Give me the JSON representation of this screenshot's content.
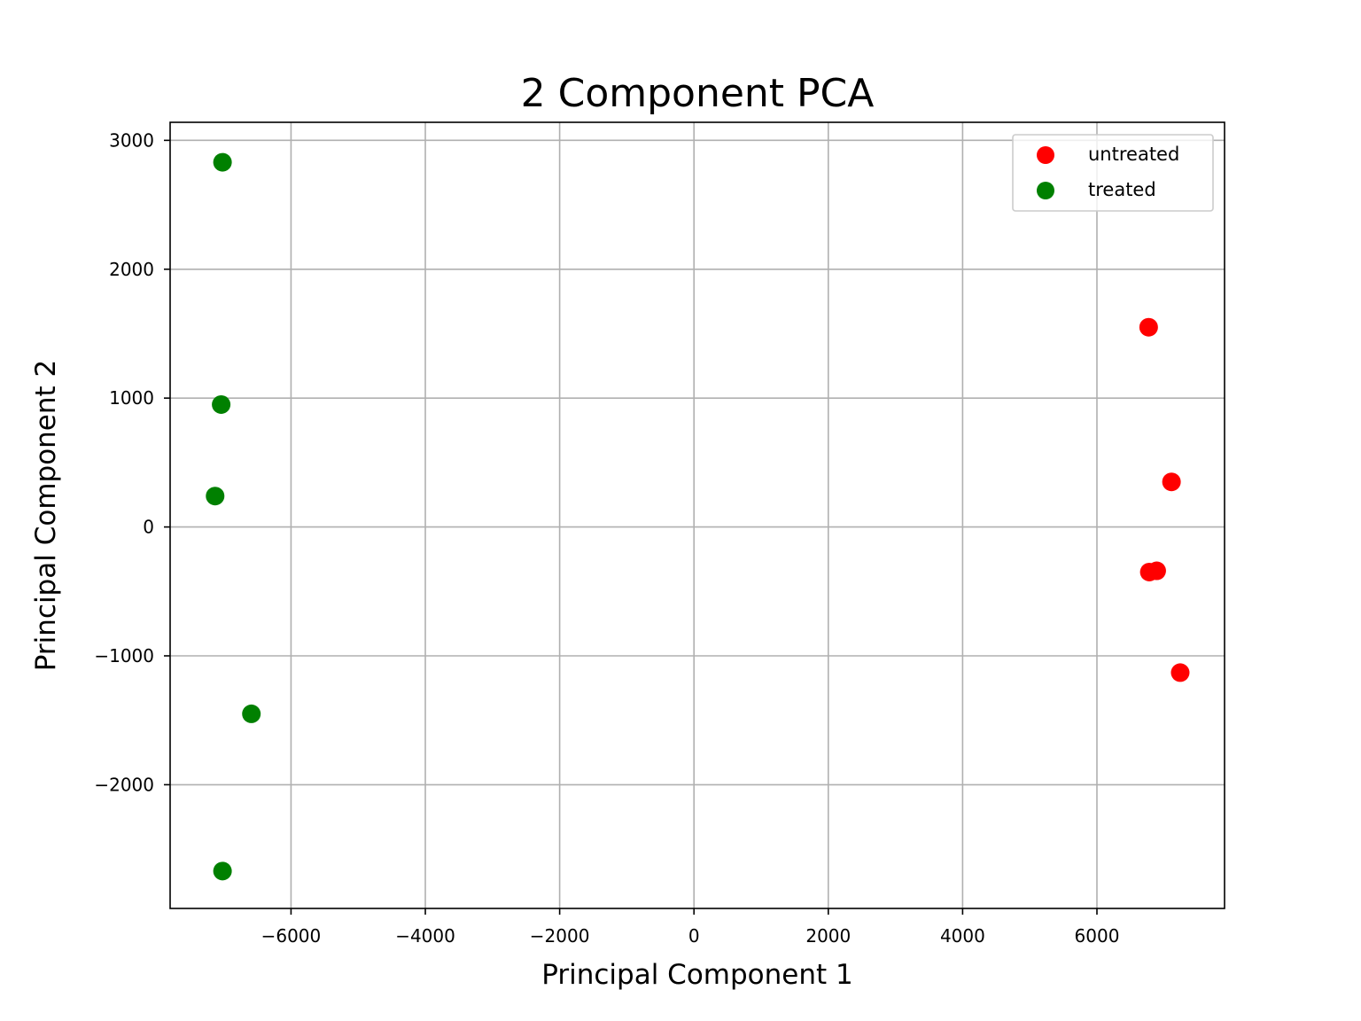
{
  "chart_data": {
    "type": "scatter",
    "title": "2 Component PCA",
    "xlabel": "Principal Component 1",
    "ylabel": "Principal Component 2",
    "xlim": [
      -7800,
      7900
    ],
    "ylim": [
      -2960,
      3140
    ],
    "xticks": [
      -6000,
      -4000,
      -2000,
      0,
      2000,
      4000,
      6000
    ],
    "xtick_labels": [
      "−6000",
      "−4000",
      "−2000",
      "0",
      "2000",
      "4000",
      "6000"
    ],
    "yticks": [
      -2000,
      -1000,
      0,
      1000,
      2000,
      3000
    ],
    "ytick_labels": [
      "−2000",
      "−1000",
      "0",
      "1000",
      "2000",
      "3000"
    ],
    "grid": true,
    "legend_position": "top-right",
    "series": [
      {
        "name": "untreated",
        "color": "#ff0000",
        "points": [
          {
            "x": 6770,
            "y": 1550
          },
          {
            "x": 7110,
            "y": 350
          },
          {
            "x": 6780,
            "y": -350
          },
          {
            "x": 6890,
            "y": -340
          },
          {
            "x": 7240,
            "y": -1130
          }
        ]
      },
      {
        "name": "treated",
        "color": "#008000",
        "points": [
          {
            "x": -7020,
            "y": 2830
          },
          {
            "x": -7040,
            "y": 950
          },
          {
            "x": -7130,
            "y": 240
          },
          {
            "x": -6590,
            "y": -1450
          },
          {
            "x": -7020,
            "y": -2670
          }
        ]
      }
    ]
  }
}
